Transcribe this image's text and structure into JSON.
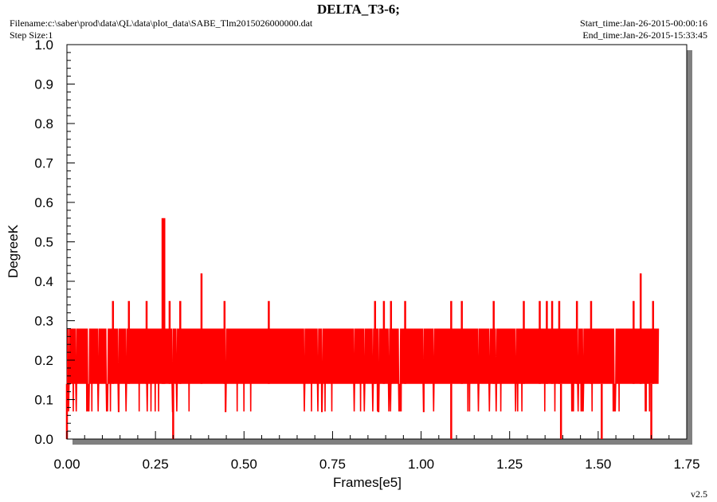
{
  "header": {
    "title": "DELTA_T3-6;",
    "filename": "Filename:c:\\saber\\prod\\data\\QL\\data\\plot_data\\SABE_Tlm2015026000000.dat",
    "step_size": "Step Size:1",
    "start_time": "Start_time:Jan-26-2015-00:00:16",
    "end_time": "End_time:Jan-26-2015-15:33:45",
    "version": "v2.5"
  },
  "colors": {
    "series": "#ff0000",
    "axis": "#000000",
    "shadow": "#808080"
  },
  "chart_data": {
    "type": "line",
    "title": "DELTA_T3-6;",
    "xlabel": "Frames[e5]",
    "ylabel": "DegreeK",
    "xlim": [
      0,
      1.75
    ],
    "ylim": [
      0,
      1.0
    ],
    "x_ticks": [
      "0.00",
      "0.25",
      "0.50",
      "0.75",
      "1.00",
      "1.25",
      "1.50",
      "1.75"
    ],
    "y_ticks": [
      "0.0",
      "0.1",
      "0.2",
      "0.3",
      "0.4",
      "0.5",
      "0.6",
      "0.7",
      "0.8",
      "0.9",
      "1.0"
    ],
    "grid": false,
    "series": [
      {
        "x_range": [
          0,
          1.67
        ],
        "dense_band": [
          0.14,
          0.28
        ],
        "common_dips": [
          0.07,
          0.14
        ],
        "spikes": [
          {
            "x": 0.27,
            "y": 0.56
          },
          {
            "x": 0.275,
            "y": 0.56
          },
          {
            "x": 0.38,
            "y": 0.42
          },
          {
            "x": 1.62,
            "y": 0.42
          },
          {
            "x": 0.13,
            "y": 0.35
          },
          {
            "x": 0.175,
            "y": 0.35
          },
          {
            "x": 0.225,
            "y": 0.35
          },
          {
            "x": 0.29,
            "y": 0.35
          },
          {
            "x": 0.32,
            "y": 0.35
          },
          {
            "x": 0.445,
            "y": 0.35
          },
          {
            "x": 0.57,
            "y": 0.35
          },
          {
            "x": 0.87,
            "y": 0.35
          },
          {
            "x": 0.895,
            "y": 0.35
          },
          {
            "x": 0.915,
            "y": 0.35
          },
          {
            "x": 0.955,
            "y": 0.35
          },
          {
            "x": 1.085,
            "y": 0.35
          },
          {
            "x": 1.115,
            "y": 0.35
          },
          {
            "x": 1.205,
            "y": 0.35
          },
          {
            "x": 1.29,
            "y": 0.35
          },
          {
            "x": 1.335,
            "y": 0.35
          },
          {
            "x": 1.355,
            "y": 0.35
          },
          {
            "x": 1.37,
            "y": 0.35
          },
          {
            "x": 1.39,
            "y": 0.35
          },
          {
            "x": 1.44,
            "y": 0.35
          },
          {
            "x": 1.48,
            "y": 0.35
          },
          {
            "x": 1.6,
            "y": 0.35
          },
          {
            "x": 1.655,
            "y": 0.35
          }
        ],
        "drops": [
          {
            "x": 0.0,
            "y": 0.0
          },
          {
            "x": 0.3,
            "y": 0.0
          },
          {
            "x": 1.085,
            "y": 0.0
          },
          {
            "x": 1.395,
            "y": 0.0
          },
          {
            "x": 1.51,
            "y": 0.0
          },
          {
            "x": 1.65,
            "y": 0.0
          }
        ]
      }
    ]
  }
}
